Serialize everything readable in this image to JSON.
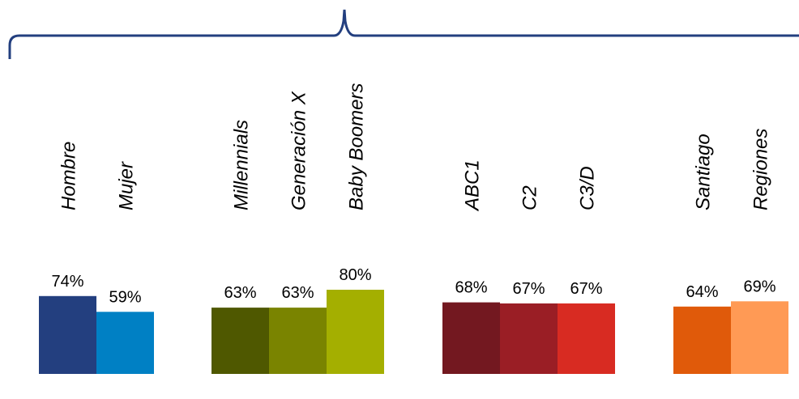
{
  "chart_data": {
    "type": "bar",
    "title": "",
    "xlabel": "",
    "ylabel": "",
    "ylim": [
      0,
      100
    ],
    "grid": false,
    "legend": "none",
    "groups": [
      {
        "categories": [
          "Hombre",
          "Mujer"
        ],
        "values": [
          74,
          59
        ],
        "value_labels": [
          "74%",
          "59%"
        ],
        "colors": [
          "#233F7F",
          "#0080C4"
        ]
      },
      {
        "categories": [
          "Millennials",
          "Generación X",
          "Baby Boomers"
        ],
        "values": [
          63,
          63,
          80
        ],
        "value_labels": [
          "63%",
          "63%",
          "80%"
        ],
        "colors": [
          "#4F5800",
          "#7A8400",
          "#A4AF00"
        ]
      },
      {
        "categories": [
          "ABC1",
          "C2",
          "C3/D"
        ],
        "values": [
          68,
          67,
          67
        ],
        "value_labels": [
          "68%",
          "67%",
          "67%"
        ],
        "colors": [
          "#731820",
          "#9A1E25",
          "#D82B22"
        ]
      },
      {
        "categories": [
          "Santiago",
          "Regiones"
        ],
        "values": [
          64,
          69
        ],
        "value_labels": [
          "64%",
          "69%"
        ],
        "colors": [
          "#E05A0A",
          "#FF9A55"
        ]
      }
    ]
  },
  "colors": {
    "brace": "#233F7F"
  }
}
